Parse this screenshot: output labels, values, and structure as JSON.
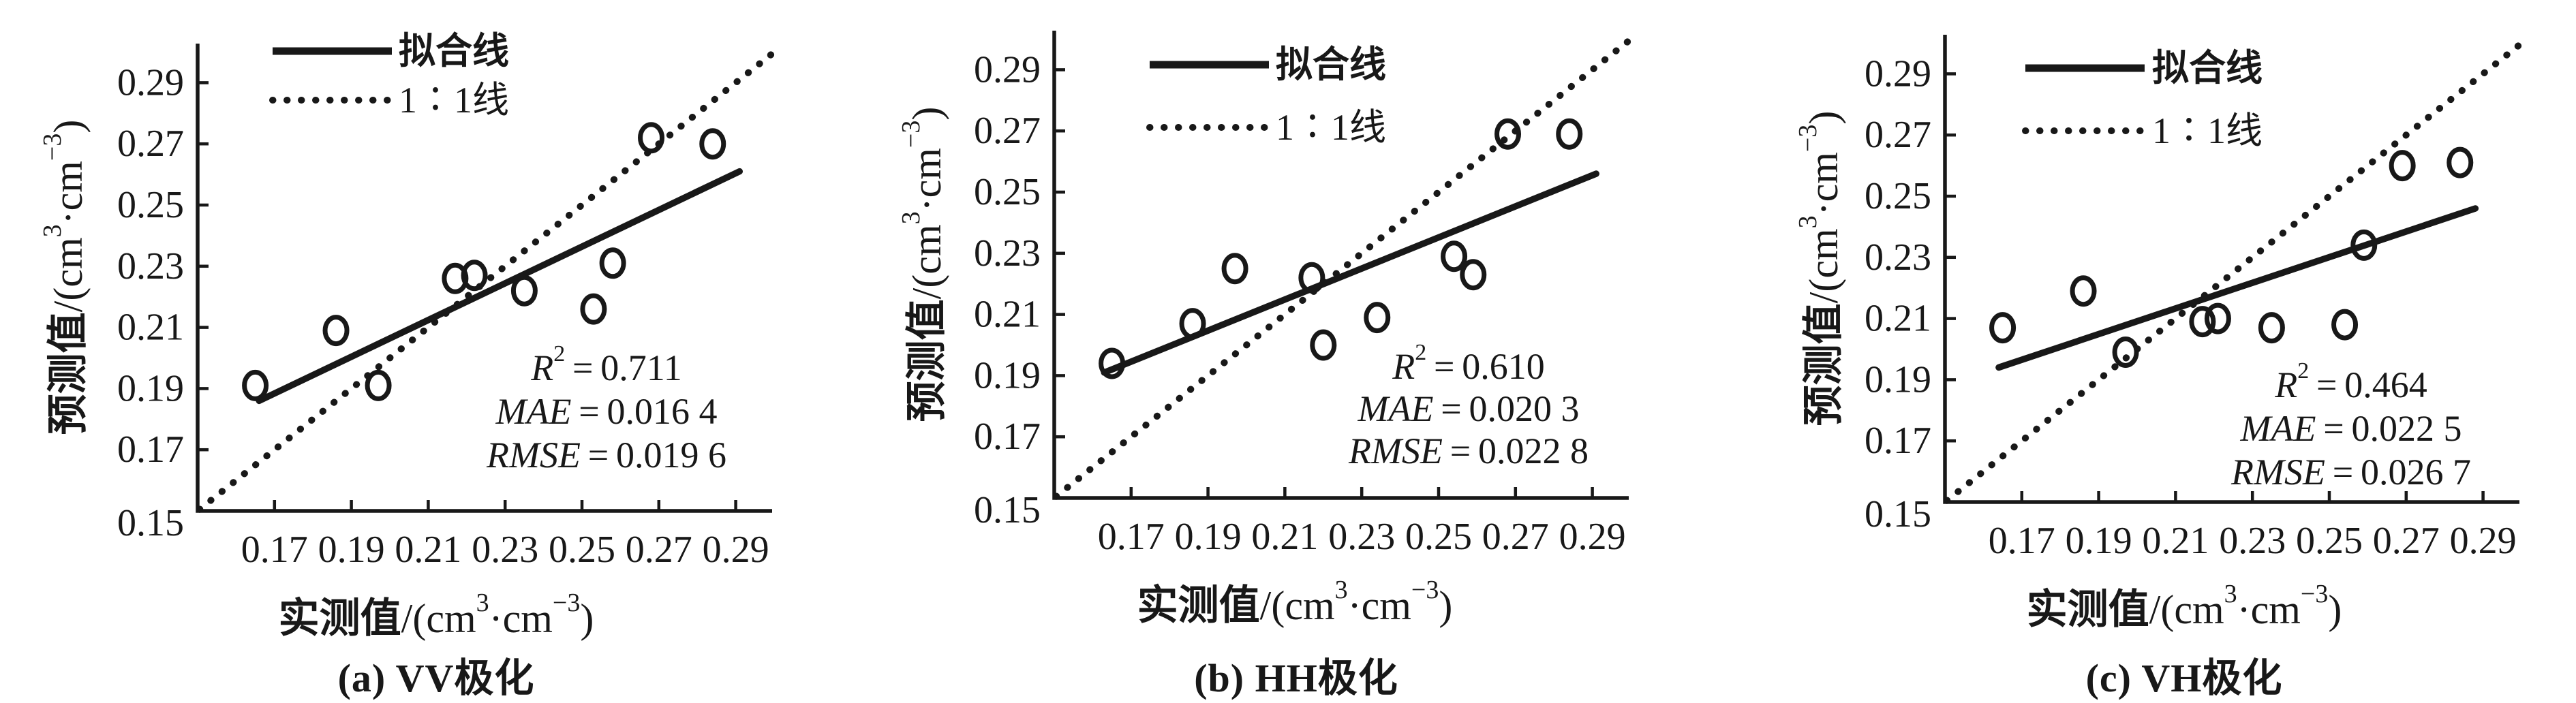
{
  "figure": {
    "background": "#ffffff",
    "ink_color": "#181818",
    "description": "三幅散点验证图（预测值与实测值对比）"
  },
  "chart_data": [
    {
      "type": "scatter",
      "title": "(a) VV极化",
      "polarization": "VV",
      "xlabel": "实测值/(cm³·cm⁻³)",
      "ylabel": "预测值/(cm³·cm⁻³)",
      "xlabel_parts": [
        {
          "t": "实测值",
          "b": true
        },
        {
          "t": "/(cm"
        },
        {
          "t": "3",
          "sup": true
        },
        {
          "t": "·cm"
        },
        {
          "t": "−3",
          "sup": true
        },
        {
          "t": ")"
        }
      ],
      "ylabel_parts": [
        {
          "t": "预测值",
          "b": true
        },
        {
          "t": "/(cm"
        },
        {
          "t": "3",
          "sup": true
        },
        {
          "t": "·cm"
        },
        {
          "t": "−3",
          "sup": true
        },
        {
          "t": ")"
        }
      ],
      "xlim": [
        0.15,
        0.3
      ],
      "ylim": [
        0.15,
        0.303
      ],
      "xticks": [
        "0.17",
        "0.19",
        "0.21",
        "0.23",
        "0.25",
        "0.27",
        "0.29"
      ],
      "yticks": [
        "0.15",
        "0.17",
        "0.19",
        "0.21",
        "0.23",
        "0.25",
        "0.27",
        "0.29"
      ],
      "grid": false,
      "marker": "open-circle",
      "legend_position": "top-left",
      "legend": [
        {
          "label": "拟合线",
          "line_style": "solid"
        },
        {
          "label": "1∶1线",
          "line_style": "dotted"
        }
      ],
      "points": [
        [
          0.165,
          0.191
        ],
        [
          0.186,
          0.209
        ],
        [
          0.197,
          0.191
        ],
        [
          0.217,
          0.226
        ],
        [
          0.222,
          0.227
        ],
        [
          0.235,
          0.222
        ],
        [
          0.253,
          0.216
        ],
        [
          0.258,
          0.231
        ],
        [
          0.268,
          0.272
        ],
        [
          0.284,
          0.27
        ]
      ],
      "fit_line": {
        "x1": 0.166,
        "y1": 0.186,
        "x2": 0.291,
        "y2": 0.261
      },
      "identity_line": {
        "x1": 0.1505,
        "y1": 0.1505,
        "x2": 0.2995,
        "y2": 0.2995
      },
      "stats": [
        {
          "name": "R",
          "sup": "2",
          "value": "0.711"
        },
        {
          "name": "MAE",
          "value": "0.016 4"
        },
        {
          "name": "RMSE",
          "value": "0.019 6"
        }
      ]
    },
    {
      "type": "scatter",
      "title": "(b) HH极化",
      "polarization": "HH",
      "xlabel": "实测值/(cm³·cm⁻³)",
      "ylabel": "预测值/(cm³·cm⁻³)",
      "xlabel_parts": [
        {
          "t": "实测值",
          "b": true
        },
        {
          "t": "/(cm"
        },
        {
          "t": "3",
          "sup": true
        },
        {
          "t": "·cm"
        },
        {
          "t": "−3",
          "sup": true
        },
        {
          "t": ")"
        }
      ],
      "ylabel_parts": [
        {
          "t": "预测值",
          "b": true
        },
        {
          "t": "/(cm"
        },
        {
          "t": "3",
          "sup": true
        },
        {
          "t": "·cm"
        },
        {
          "t": "−3",
          "sup": true
        },
        {
          "t": ")"
        }
      ],
      "xlim": [
        0.15,
        0.3
      ],
      "ylim": [
        0.15,
        0.303
      ],
      "xticks": [
        "0.17",
        "0.19",
        "0.21",
        "0.23",
        "0.25",
        "0.27",
        "0.29"
      ],
      "yticks": [
        "0.15",
        "0.17",
        "0.19",
        "0.21",
        "0.23",
        "0.25",
        "0.27",
        "0.29"
      ],
      "grid": false,
      "marker": "open-circle",
      "legend_position": "top-left",
      "legend": [
        {
          "label": "拟合线",
          "line_style": "solid"
        },
        {
          "label": "1∶1线",
          "line_style": "dotted"
        }
      ],
      "points": [
        [
          0.165,
          0.194
        ],
        [
          0.186,
          0.207
        ],
        [
          0.197,
          0.225
        ],
        [
          0.217,
          0.222
        ],
        [
          0.22,
          0.2
        ],
        [
          0.234,
          0.209
        ],
        [
          0.254,
          0.229
        ],
        [
          0.259,
          0.223
        ],
        [
          0.268,
          0.269
        ],
        [
          0.284,
          0.269
        ]
      ],
      "fit_line": {
        "x1": 0.163,
        "y1": 0.191,
        "x2": 0.291,
        "y2": 0.256
      },
      "identity_line": {
        "x1": 0.1505,
        "y1": 0.1505,
        "x2": 0.2995,
        "y2": 0.2995
      },
      "stats": [
        {
          "name": "R",
          "sup": "2",
          "value": "0.610"
        },
        {
          "name": "MAE",
          "value": "0.020 3"
        },
        {
          "name": "RMSE",
          "value": "0.022 8"
        }
      ]
    },
    {
      "type": "scatter",
      "title": "(c) VH极化",
      "polarization": "VH",
      "xlabel": "实测值/(cm³·cm⁻³)",
      "ylabel": "预测值/(cm³·cm⁻³)",
      "xlabel_parts": [
        {
          "t": "实测值",
          "b": true
        },
        {
          "t": "/(cm"
        },
        {
          "t": "3",
          "sup": true
        },
        {
          "t": "·cm"
        },
        {
          "t": "−3",
          "sup": true
        },
        {
          "t": ")"
        }
      ],
      "ylabel_parts": [
        {
          "t": "预测值",
          "b": true
        },
        {
          "t": "/(cm"
        },
        {
          "t": "3",
          "sup": true
        },
        {
          "t": "·cm"
        },
        {
          "t": "−3",
          "sup": true
        },
        {
          "t": ")"
        }
      ],
      "xlim": [
        0.15,
        0.3
      ],
      "ylim": [
        0.15,
        0.303
      ],
      "xticks": [
        "0.17",
        "0.19",
        "0.21",
        "0.23",
        "0.25",
        "0.27",
        "0.29"
      ],
      "yticks": [
        "0.15",
        "0.17",
        "0.19",
        "0.21",
        "0.23",
        "0.25",
        "0.27",
        "0.29"
      ],
      "grid": false,
      "marker": "open-circle",
      "legend_position": "top-left",
      "legend": [
        {
          "label": "拟合线",
          "line_style": "solid"
        },
        {
          "label": "1∶1线",
          "line_style": "dotted"
        }
      ],
      "points": [
        [
          0.165,
          0.207
        ],
        [
          0.186,
          0.219
        ],
        [
          0.197,
          0.199
        ],
        [
          0.217,
          0.209
        ],
        [
          0.221,
          0.21
        ],
        [
          0.235,
          0.207
        ],
        [
          0.254,
          0.208
        ],
        [
          0.259,
          0.234
        ],
        [
          0.269,
          0.26
        ],
        [
          0.284,
          0.261
        ]
      ],
      "fit_line": {
        "x1": 0.164,
        "y1": 0.194,
        "x2": 0.288,
        "y2": 0.246
      },
      "identity_line": {
        "x1": 0.1505,
        "y1": 0.1505,
        "x2": 0.2995,
        "y2": 0.2995
      },
      "stats": [
        {
          "name": "R",
          "sup": "2",
          "value": "0.464"
        },
        {
          "name": "MAE",
          "value": "0.022 5"
        },
        {
          "name": "RMSE",
          "value": "0.026 7"
        }
      ]
    }
  ]
}
